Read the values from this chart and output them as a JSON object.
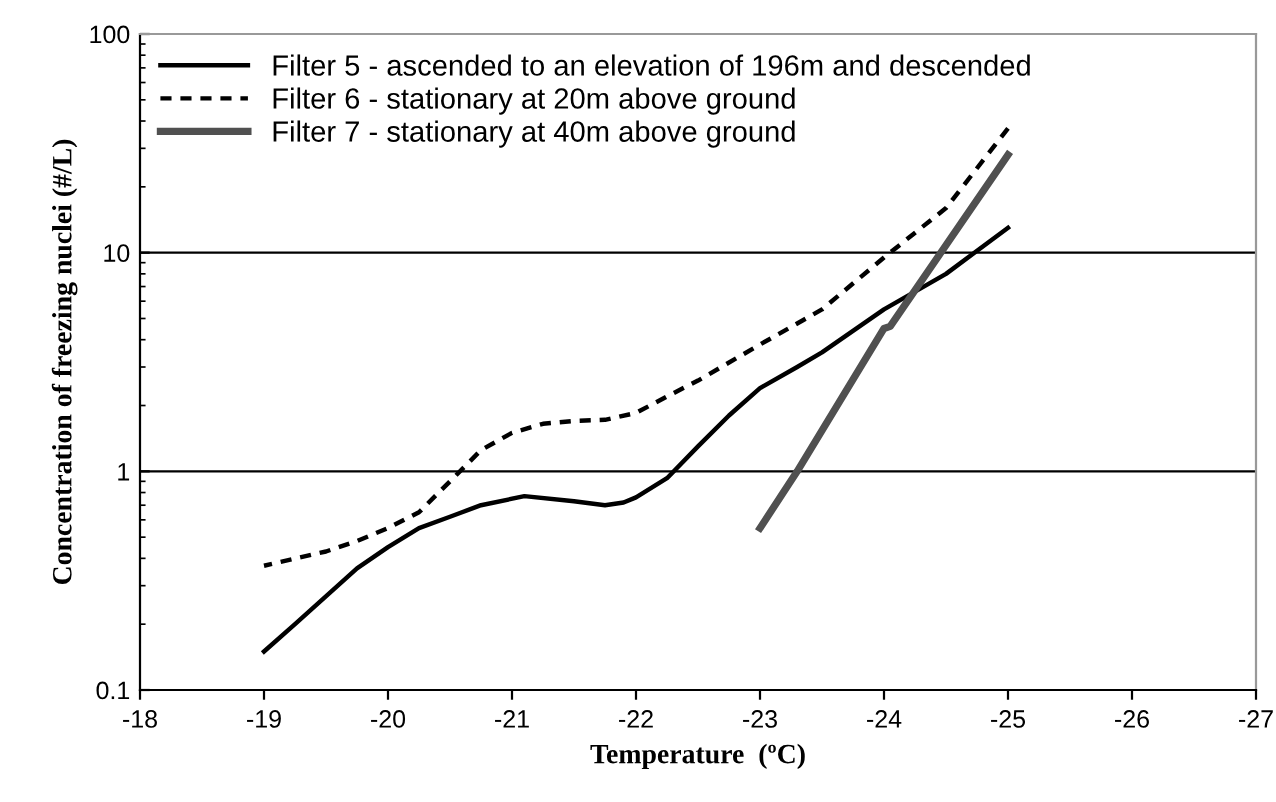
{
  "chart_data": {
    "type": "line",
    "xlabel": "Temperature  (ºC)",
    "ylabel": "Concentration of freezing nuclei (#/L)",
    "xlim": [
      -18,
      -27
    ],
    "xticks": [
      -18,
      -19,
      -20,
      -21,
      -22,
      -23,
      -24,
      -25,
      -26,
      -27
    ],
    "ylim": [
      0.1,
      100
    ],
    "yticks": [
      0.1,
      1,
      10,
      100
    ],
    "log": "y",
    "grid": "y",
    "legend": "top left",
    "series": [
      {
        "name": "Filter 5 - ascended to an elevation of 196m and descended",
        "color": "#000000",
        "line_style": "solid",
        "x": [
          -19,
          -19.25,
          -19.75,
          -20,
          -20.25,
          -20.5,
          -20.75,
          -21.1,
          -21.5,
          -21.75,
          -21.9,
          -22,
          -22.25,
          -22.5,
          -22.75,
          -23,
          -23.3,
          -23.5,
          -24,
          -24.5,
          -25
        ],
        "values": [
          0.15,
          0.2,
          0.36,
          0.45,
          0.55,
          0.62,
          0.7,
          0.77,
          0.73,
          0.7,
          0.72,
          0.76,
          0.93,
          1.3,
          1.8,
          2.4,
          3.0,
          3.5,
          5.5,
          8.0,
          13
        ]
      },
      {
        "name": "Filter 6 - stationary at 20m above ground",
        "color": "#000000",
        "line_style": "dashed",
        "x": [
          -19,
          -19.5,
          -19.75,
          -20,
          -20.25,
          -20.5,
          -20.75,
          -21,
          -21.25,
          -21.5,
          -21.75,
          -22,
          -22.25,
          -22.5,
          -23,
          -23.5,
          -24,
          -24.5,
          -25
        ],
        "values": [
          0.37,
          0.43,
          0.48,
          0.55,
          0.65,
          0.9,
          1.25,
          1.5,
          1.65,
          1.7,
          1.72,
          1.85,
          2.2,
          2.6,
          3.8,
          5.5,
          9.5,
          16,
          37
        ]
      },
      {
        "name": "Filter 7 - stationary at 40m above ground",
        "color": "#505050",
        "line_style": "solid",
        "x": [
          -23,
          -23.3,
          -24,
          -24.05,
          -25
        ],
        "values": [
          0.55,
          1.0,
          4.5,
          4.6,
          28
        ]
      }
    ]
  }
}
